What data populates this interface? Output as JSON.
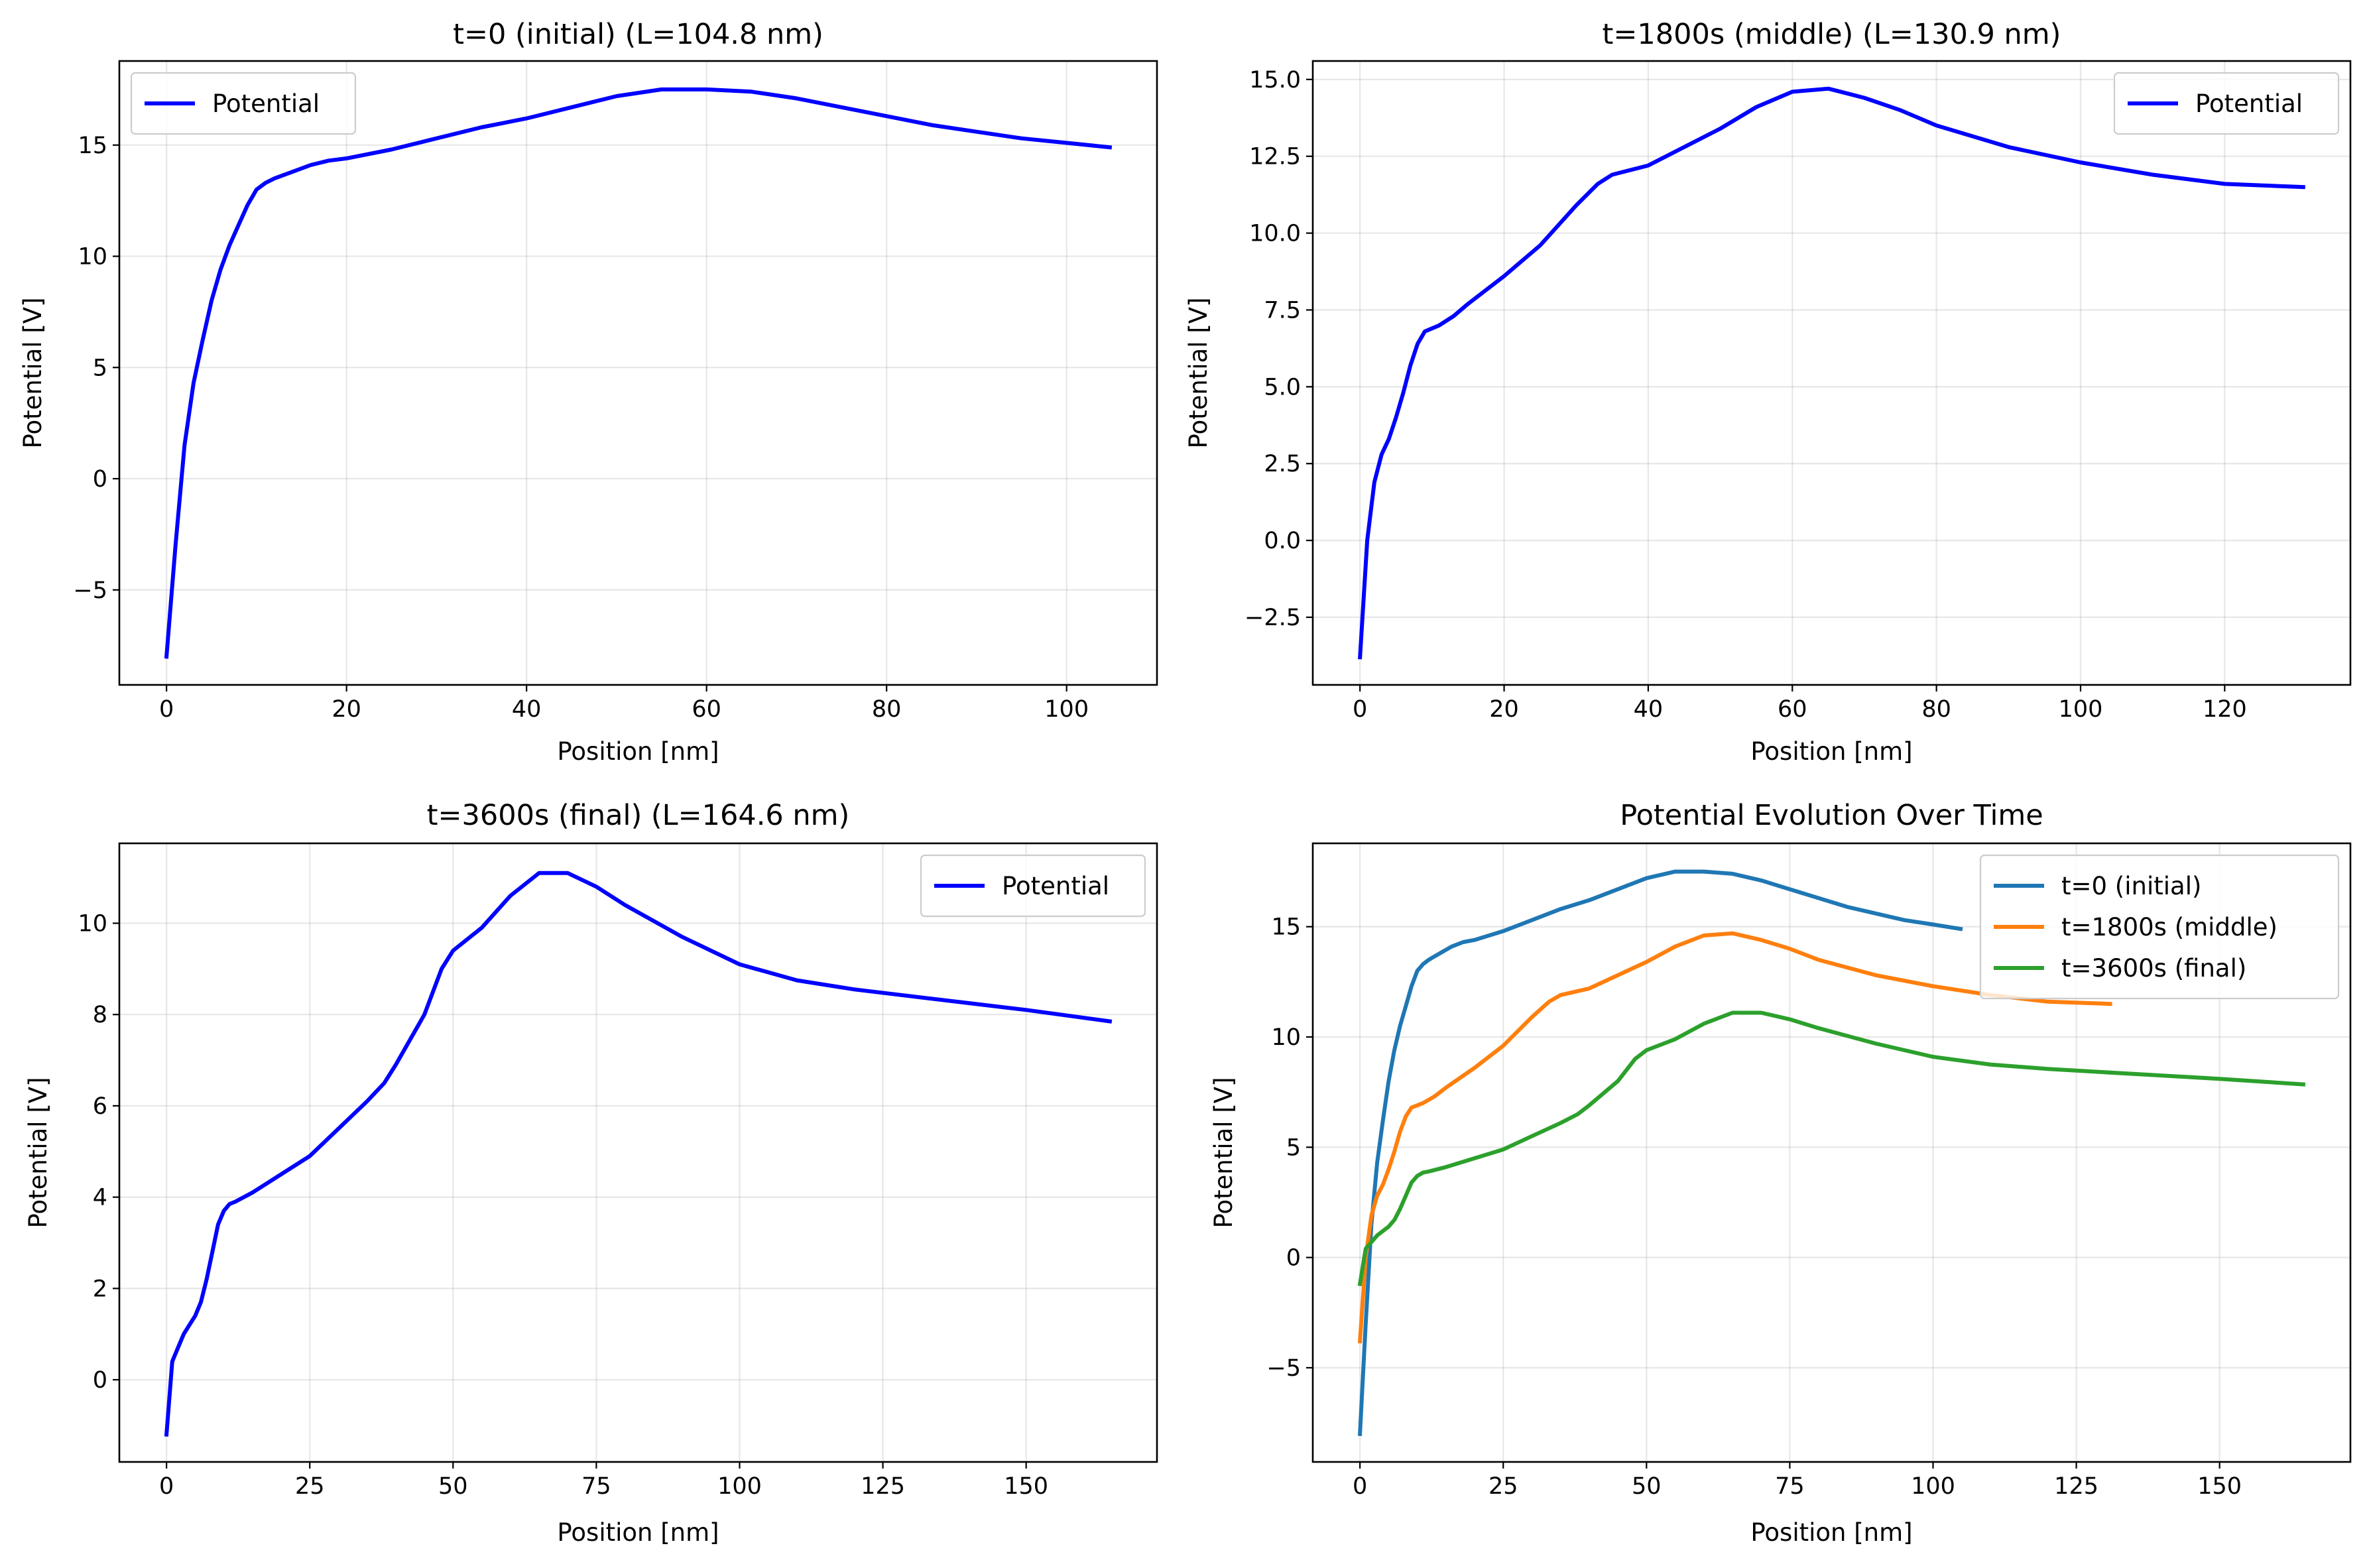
{
  "figure": {
    "background": "#ffffff"
  },
  "chart_data": [
    {
      "type": "line",
      "title": "t=0 (initial) (L=104.8 nm)",
      "xlabel": "Position [nm]",
      "ylabel": "Potential [V]",
      "xlim": [
        -5.24,
        110.04
      ],
      "ylim": [
        -9.27,
        18.78
      ],
      "xticks": [
        0,
        20,
        40,
        60,
        80,
        100
      ],
      "yticks": [
        -5,
        0,
        5,
        10,
        15
      ],
      "ytick_labels": [
        "−5",
        "0",
        "5",
        "10",
        "15"
      ],
      "grid": true,
      "legend": {
        "position": "upper-left",
        "entries": [
          "Potential"
        ]
      },
      "series": [
        {
          "name": "Potential",
          "color": "#0000ff",
          "x": [
            0,
            1,
            2,
            3,
            4,
            5,
            6,
            7,
            8,
            9,
            10,
            11,
            12,
            14,
            16,
            18,
            20,
            25,
            30,
            35,
            40,
            45,
            50,
            55,
            60,
            65,
            70,
            75,
            80,
            85,
            90,
            95,
            100,
            104.8
          ],
          "y": [
            -8.0,
            -3.0,
            1.5,
            4.3,
            6.2,
            8.0,
            9.4,
            10.5,
            11.4,
            12.3,
            13.0,
            13.3,
            13.5,
            13.8,
            14.1,
            14.3,
            14.4,
            14.8,
            15.3,
            15.8,
            16.2,
            16.7,
            17.2,
            17.5,
            17.5,
            17.4,
            17.1,
            16.7,
            16.3,
            15.9,
            15.6,
            15.3,
            15.1,
            14.9
          ]
        }
      ]
    },
    {
      "type": "line",
      "title": "t=1800s (middle) (L=130.9 nm)",
      "xlabel": "Position [nm]",
      "ylabel": "Potential [V]",
      "xlim": [
        -6.55,
        137.45
      ],
      "ylim": [
        -4.7,
        15.6
      ],
      "xticks": [
        0,
        20,
        40,
        60,
        80,
        100,
        120
      ],
      "yticks": [
        -2.5,
        0.0,
        2.5,
        5.0,
        7.5,
        10.0,
        12.5,
        15.0
      ],
      "ytick_labels": [
        "−2.5",
        "0.0",
        "2.5",
        "5.0",
        "7.5",
        "10.0",
        "12.5",
        "15.0"
      ],
      "grid": true,
      "legend": {
        "position": "upper-right",
        "entries": [
          "Potential"
        ]
      },
      "series": [
        {
          "name": "Potential",
          "color": "#0000ff",
          "x": [
            0,
            1,
            2,
            3,
            4,
            5,
            6,
            7,
            8,
            9,
            10,
            11,
            13,
            15,
            20,
            25,
            30,
            33,
            35,
            40,
            45,
            50,
            55,
            60,
            65,
            70,
            75,
            80,
            90,
            100,
            110,
            120,
            130.9
          ],
          "y": [
            -3.8,
            0.0,
            1.9,
            2.8,
            3.3,
            4.0,
            4.8,
            5.7,
            6.4,
            6.8,
            6.9,
            7.0,
            7.3,
            7.7,
            8.6,
            9.6,
            10.9,
            11.6,
            11.9,
            12.2,
            12.8,
            13.4,
            14.1,
            14.6,
            14.7,
            14.4,
            14.0,
            13.5,
            12.8,
            12.3,
            11.9,
            11.6,
            11.5
          ]
        }
      ]
    },
    {
      "type": "line",
      "title": "t=3600s (final) (L=164.6 nm)",
      "xlabel": "Position [nm]",
      "ylabel": "Potential [V]",
      "xlim": [
        -8.23,
        172.83
      ],
      "ylim": [
        -1.8,
        11.75
      ],
      "xticks": [
        0,
        25,
        50,
        75,
        100,
        125,
        150
      ],
      "yticks": [
        0,
        2,
        4,
        6,
        8,
        10
      ],
      "ytick_labels": [
        "0",
        "2",
        "4",
        "6",
        "8",
        "10"
      ],
      "grid": true,
      "legend": {
        "position": "upper-right",
        "entries": [
          "Potential"
        ]
      },
      "series": [
        {
          "name": "Potential",
          "color": "#0000ff",
          "x": [
            0,
            1,
            2,
            3,
            4,
            5,
            6,
            7,
            8,
            9,
            10,
            11,
            12,
            15,
            20,
            25,
            30,
            35,
            38,
            40,
            45,
            48,
            50,
            55,
            60,
            65,
            70,
            75,
            80,
            90,
            100,
            110,
            120,
            130,
            140,
            150,
            164.6
          ],
          "y": [
            -1.2,
            0.4,
            0.7,
            1.0,
            1.2,
            1.4,
            1.7,
            2.2,
            2.8,
            3.4,
            3.7,
            3.85,
            3.9,
            4.1,
            4.5,
            4.9,
            5.5,
            6.1,
            6.5,
            6.9,
            8.0,
            9.0,
            9.4,
            9.9,
            10.6,
            11.1,
            11.1,
            10.8,
            10.4,
            9.7,
            9.1,
            8.75,
            8.55,
            8.4,
            8.25,
            8.1,
            7.85
          ]
        }
      ]
    },
    {
      "type": "line",
      "title": "Potential Evolution Over Time",
      "xlabel": "Position [nm]",
      "ylabel": "Potential [V]",
      "xlim": [
        -8.23,
        172.83
      ],
      "ylim": [
        -9.27,
        18.78
      ],
      "xticks": [
        0,
        25,
        50,
        75,
        100,
        125,
        150
      ],
      "yticks": [
        -5,
        0,
        5,
        10,
        15
      ],
      "ytick_labels": [
        "−5",
        "0",
        "5",
        "10",
        "15"
      ],
      "grid": true,
      "legend": {
        "position": "upper-right",
        "entries": [
          "t=0 (initial)",
          "t=1800s (middle)",
          "t=3600s (final)"
        ]
      },
      "series": [
        {
          "name": "t=0 (initial)",
          "color": "#1f77b4",
          "x": [
            0,
            1,
            2,
            3,
            4,
            5,
            6,
            7,
            8,
            9,
            10,
            11,
            12,
            14,
            16,
            18,
            20,
            25,
            30,
            35,
            40,
            45,
            50,
            55,
            60,
            65,
            70,
            75,
            80,
            85,
            90,
            95,
            100,
            104.8
          ],
          "y": [
            -8.0,
            -3.0,
            1.5,
            4.3,
            6.2,
            8.0,
            9.4,
            10.5,
            11.4,
            12.3,
            13.0,
            13.3,
            13.5,
            13.8,
            14.1,
            14.3,
            14.4,
            14.8,
            15.3,
            15.8,
            16.2,
            16.7,
            17.2,
            17.5,
            17.5,
            17.4,
            17.1,
            16.7,
            16.3,
            15.9,
            15.6,
            15.3,
            15.1,
            14.9
          ]
        },
        {
          "name": "t=1800s (middle)",
          "color": "#ff7f0e",
          "x": [
            0,
            1,
            2,
            3,
            4,
            5,
            6,
            7,
            8,
            9,
            10,
            11,
            13,
            15,
            20,
            25,
            30,
            33,
            35,
            40,
            45,
            50,
            55,
            60,
            65,
            70,
            75,
            80,
            90,
            100,
            110,
            120,
            130.9
          ],
          "y": [
            -3.8,
            0.0,
            1.9,
            2.8,
            3.3,
            4.0,
            4.8,
            5.7,
            6.4,
            6.8,
            6.9,
            7.0,
            7.3,
            7.7,
            8.6,
            9.6,
            10.9,
            11.6,
            11.9,
            12.2,
            12.8,
            13.4,
            14.1,
            14.6,
            14.7,
            14.4,
            14.0,
            13.5,
            12.8,
            12.3,
            11.9,
            11.6,
            11.5
          ]
        },
        {
          "name": "t=3600s (final)",
          "color": "#2ca02c",
          "x": [
            0,
            1,
            2,
            3,
            4,
            5,
            6,
            7,
            8,
            9,
            10,
            11,
            12,
            15,
            20,
            25,
            30,
            35,
            38,
            40,
            45,
            48,
            50,
            55,
            60,
            65,
            70,
            75,
            80,
            90,
            100,
            110,
            120,
            130,
            140,
            150,
            164.6
          ],
          "y": [
            -1.2,
            0.4,
            0.7,
            1.0,
            1.2,
            1.4,
            1.7,
            2.2,
            2.8,
            3.4,
            3.7,
            3.85,
            3.9,
            4.1,
            4.5,
            4.9,
            5.5,
            6.1,
            6.5,
            6.9,
            8.0,
            9.0,
            9.4,
            9.9,
            10.6,
            11.1,
            11.1,
            10.8,
            10.4,
            9.7,
            9.1,
            8.75,
            8.55,
            8.4,
            8.25,
            8.1,
            7.85
          ]
        }
      ]
    }
  ]
}
